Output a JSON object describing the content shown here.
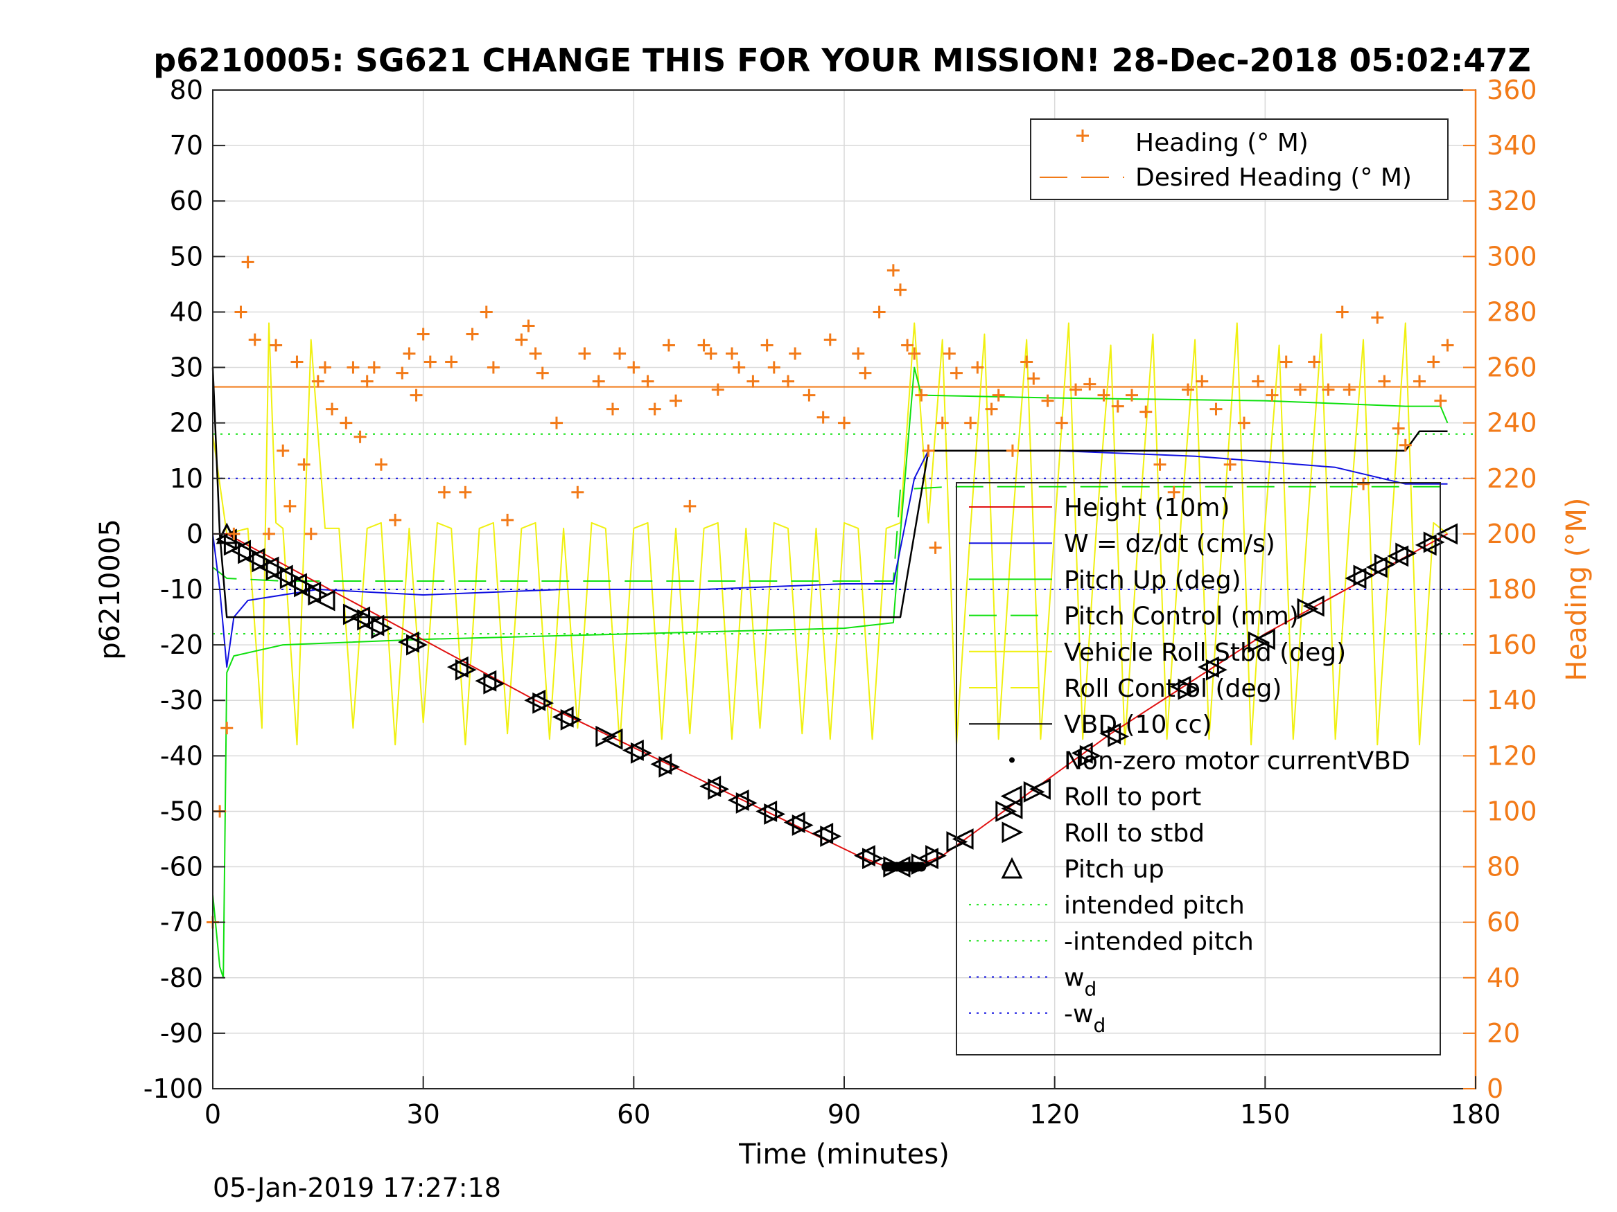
{
  "title": "p6210005: SG621 CHANGE THIS FOR YOUR MISSION! 28-Dec-2018 05:02:47Z",
  "footer_timestamp": "05-Jan-2019 17:27:18",
  "colors": {
    "heading": "#f27a18",
    "height": "#e01010",
    "w": "#1010e0",
    "pitch": "#10e010",
    "roll": "#f0f010",
    "vbd": "#000000",
    "grid": "#d9d9d9"
  },
  "chart_data": {
    "type": "line",
    "xlabel": "Time (minutes)",
    "ylabel_left": "p6210005",
    "ylabel_right": "Heading (°M)",
    "xlim": [
      0,
      180
    ],
    "ylim_left": [
      -100,
      80
    ],
    "ylim_right": [
      0,
      360
    ],
    "x_ticks": [
      0,
      30,
      60,
      90,
      120,
      150,
      180
    ],
    "y_ticks_left": [
      80,
      70,
      60,
      50,
      40,
      30,
      20,
      10,
      0,
      -10,
      -20,
      -30,
      -40,
      -50,
      -60,
      -70,
      -80,
      -90,
      -100
    ],
    "y_ticks_right": [
      360,
      340,
      320,
      300,
      280,
      260,
      240,
      220,
      200,
      180,
      160,
      140,
      120,
      100,
      80,
      60,
      40,
      20,
      0
    ],
    "grid": true,
    "legend_heading": {
      "placement": "top-right",
      "entries": [
        "Heading (° M)",
        "Desired Heading (° M)"
      ]
    },
    "legend_main": {
      "placement": "right",
      "entries": [
        {
          "label": "Height (10m)",
          "style": "solid",
          "color": "#e01010"
        },
        {
          "label": "W = dz/dt (cm/s)",
          "style": "solid",
          "color": "#1010e0"
        },
        {
          "label": "Pitch Up (deg)",
          "style": "solid",
          "color": "#10e010"
        },
        {
          "label": "Pitch Control (mm)",
          "style": "dashed",
          "color": "#10e010"
        },
        {
          "label": "Vehicle Roll Stbd (deg)",
          "style": "solid",
          "color": "#f0f010"
        },
        {
          "label": "Roll Control (deg)",
          "style": "dashed",
          "color": "#f0f010"
        },
        {
          "label": "VBD (10 cc)",
          "style": "solid",
          "color": "#000000"
        },
        {
          "label": "Non-zero motor currentVBD",
          "style": "dot",
          "color": "#000000"
        },
        {
          "label": "Roll to port",
          "style": "marker-left",
          "color": "#000000"
        },
        {
          "label": "Roll to stbd",
          "style": "marker-right",
          "color": "#000000"
        },
        {
          "label": "Pitch up",
          "style": "marker-up",
          "color": "#000000"
        },
        {
          "label": "intended pitch",
          "style": "dotted",
          "color": "#10e010"
        },
        {
          "label": "-intended pitch",
          "style": "dotted",
          "color": "#10e010"
        },
        {
          "label": "w",
          "sub": "d",
          "style": "dotted",
          "color": "#1010e0"
        },
        {
          "label": "-w",
          "sub": "d",
          "style": "dotted",
          "color": "#1010e0"
        }
      ]
    },
    "series": [
      {
        "name": "Height (10m)",
        "axis": "left",
        "x": [
          0,
          2,
          46,
          92,
          96,
          100,
          104,
          128,
          150,
          176
        ],
        "y": [
          0,
          0,
          -30,
          -58,
          -60,
          -60,
          -58,
          -36,
          -18,
          0
        ]
      },
      {
        "name": "W = dz/dt (cm/s)",
        "axis": "left",
        "x": [
          0,
          1,
          2,
          3,
          5,
          15,
          30,
          50,
          70,
          90,
          97,
          100,
          102,
          120,
          140,
          160,
          170,
          176
        ],
        "y": [
          0,
          -10,
          -24,
          -15,
          -12,
          -10,
          -11,
          -10,
          -10,
          -9,
          -9,
          10,
          15,
          15,
          14,
          12,
          9,
          9
        ]
      },
      {
        "name": "Pitch Up (deg)",
        "axis": "left",
        "x": [
          0,
          1,
          1.5,
          2,
          3,
          10,
          30,
          60,
          90,
          97,
          98,
          100,
          101,
          120,
          150,
          170,
          175,
          176
        ],
        "y": [
          -65,
          -78,
          -80,
          -25,
          -22,
          -20,
          -19,
          -18,
          -17,
          -16,
          0,
          30,
          25,
          24.5,
          24,
          23,
          23,
          20
        ]
      },
      {
        "name": "Pitch Control (mm)",
        "axis": "left",
        "x": [
          0,
          2,
          10,
          97,
          98,
          105,
          176
        ],
        "y": [
          -6,
          -8,
          -8.5,
          -8.5,
          8,
          8.5,
          8.5
        ]
      },
      {
        "name": "VBD (10 cc)",
        "axis": "left",
        "x": [
          0,
          1,
          2,
          97,
          98,
          102,
          110,
          170,
          172,
          176
        ],
        "y": [
          30,
          0,
          -15,
          -15,
          -15,
          15,
          15,
          15,
          18.5,
          18.5
        ]
      },
      {
        "name": "intended pitch",
        "axis": "left",
        "x": [
          0,
          180
        ],
        "y": [
          18,
          18
        ]
      },
      {
        "name": "-intended pitch",
        "axis": "left",
        "x": [
          0,
          180
        ],
        "y": [
          -18,
          -18
        ]
      },
      {
        "name": "wd",
        "axis": "left",
        "x": [
          0,
          180
        ],
        "y": [
          10,
          10
        ]
      },
      {
        "name": "-wd",
        "axis": "left",
        "x": [
          0,
          180
        ],
        "y": [
          -10,
          -10
        ]
      },
      {
        "name": "Desired Heading (° M)",
        "axis": "right",
        "x": [
          0,
          180
        ],
        "y": [
          253,
          253
        ]
      },
      {
        "name": "Vehicle Roll Stbd (deg)",
        "axis": "left",
        "x": [
          0,
          2,
          5,
          7,
          8,
          9,
          10,
          12,
          14,
          16,
          18,
          20,
          22,
          24,
          26,
          28,
          30,
          32,
          34,
          36,
          38,
          40,
          42,
          44,
          46,
          48,
          50,
          52,
          54,
          56,
          58,
          60,
          62,
          64,
          66,
          68,
          70,
          72,
          74,
          76,
          78,
          80,
          82,
          84,
          86,
          88,
          90,
          92,
          94,
          96,
          98,
          100,
          102,
          104,
          106,
          108,
          110,
          112,
          114,
          116,
          118,
          120,
          122,
          124,
          126,
          128,
          130,
          132,
          134,
          136,
          138,
          140,
          142,
          144,
          146,
          148,
          150,
          152,
          154,
          156,
          158,
          160,
          162,
          164,
          166,
          168,
          170,
          172,
          174,
          176
        ],
        "y": [
          18,
          0,
          1,
          -35,
          38,
          2,
          1,
          -38,
          35,
          1,
          1,
          -35,
          1,
          2,
          -38,
          1,
          -34,
          2,
          1,
          -38,
          1,
          2,
          -36,
          1,
          2,
          -37,
          1,
          -35,
          2,
          1,
          -38,
          1,
          2,
          -37,
          1,
          -36,
          1,
          2,
          -37,
          1,
          -35,
          2,
          1,
          -36,
          1,
          -37,
          2,
          1,
          -37,
          1,
          2,
          38,
          2,
          35,
          -38,
          1,
          36,
          -37,
          2,
          35,
          -37,
          1,
          38,
          -37,
          2,
          34,
          -38,
          1,
          36,
          -37,
          2,
          35,
          -37,
          1,
          38,
          -38,
          2,
          34,
          -37,
          1,
          36,
          -37,
          2,
          35,
          -38,
          1,
          38,
          -38,
          2,
          0
        ]
      },
      {
        "name": "Heading (° M)",
        "axis": "right",
        "x": [
          0,
          1,
          2,
          3,
          4,
          5,
          6,
          8,
          9,
          10,
          11,
          12,
          13,
          14,
          15,
          16,
          17,
          19,
          20,
          21,
          22,
          23,
          24,
          26,
          27,
          28,
          29,
          30,
          31,
          33,
          34,
          36,
          37,
          39,
          40,
          42,
          44,
          45,
          46,
          47,
          49,
          52,
          53,
          55,
          57,
          58,
          60,
          62,
          63,
          65,
          66,
          68,
          70,
          71,
          72,
          74,
          75,
          77,
          79,
          80,
          82,
          83,
          85,
          87,
          88,
          90,
          92,
          93,
          95,
          97,
          98,
          99,
          100,
          101,
          102,
          103,
          104,
          105,
          106,
          108,
          109,
          111,
          112,
          114,
          116,
          117,
          119,
          121,
          123,
          125,
          127,
          129,
          131,
          133,
          135,
          137,
          139,
          141,
          143,
          145,
          147,
          149,
          151,
          153,
          155,
          157,
          159,
          161,
          162,
          164,
          166,
          167,
          169,
          170,
          172,
          174,
          175,
          176
        ],
        "y": [
          60,
          100,
          130,
          200,
          280,
          298,
          270,
          200,
          268,
          230,
          210,
          262,
          225,
          200,
          255,
          260,
          245,
          240,
          260,
          235,
          255,
          260,
          225,
          205,
          258,
          265,
          250,
          272,
          262,
          215,
          262,
          215,
          272,
          280,
          260,
          205,
          270,
          275,
          265,
          258,
          240,
          215,
          265,
          255,
          245,
          265,
          260,
          255,
          245,
          268,
          248,
          210,
          268,
          265,
          252,
          265,
          260,
          255,
          268,
          260,
          255,
          265,
          250,
          242,
          270,
          240,
          265,
          258,
          280,
          295,
          288,
          268,
          265,
          250,
          230,
          195,
          240,
          265,
          258,
          240,
          260,
          245,
          250,
          230,
          262,
          256,
          248,
          240,
          252,
          254,
          250,
          246,
          250,
          244,
          225,
          215,
          252,
          255,
          245,
          225,
          240,
          255,
          250,
          262,
          252,
          262,
          252,
          280,
          252,
          218,
          278,
          255,
          238,
          232,
          255,
          262,
          248,
          268
        ]
      }
    ],
    "markers": {
      "roll_to_port": {
        "x": [
          2,
          4,
          6,
          8,
          10,
          12,
          14,
          16,
          21,
          23,
          28,
          35,
          39,
          46,
          50,
          57,
          60,
          64,
          71,
          75,
          79,
          83,
          87,
          93,
          98,
          102,
          107,
          114,
          118,
          124,
          128,
          138,
          142,
          150,
          157,
          163,
          166,
          169,
          173,
          176
        ],
        "y": [
          -1,
          -3,
          -4.5,
          -6,
          -7.5,
          -9,
          -10.5,
          -12,
          -15,
          -16.5,
          -19.5,
          -24,
          -26.5,
          -30,
          -33,
          -37,
          -39,
          -41.5,
          -45.5,
          -48,
          -50,
          -52,
          -54,
          -58,
          -60,
          -58.5,
          -55,
          -49.5,
          -46,
          -39.5,
          -36,
          -27.5,
          -24,
          -19,
          -13,
          -8,
          -6,
          -4,
          -2,
          0
        ]
      },
      "roll_to_stbd": {
        "x": [
          3,
          5,
          7,
          9,
          11,
          13,
          15,
          20,
          22,
          24,
          29,
          36,
          40,
          47,
          51,
          56,
          61,
          65,
          72,
          76,
          80,
          84,
          88,
          94,
          97,
          101,
          103,
          106,
          113,
          117,
          125,
          129,
          139,
          143,
          149,
          156,
          164,
          167,
          170,
          174
        ],
        "y": [
          -2,
          -3.5,
          -5,
          -6.5,
          -8,
          -9.5,
          -11,
          -14.5,
          -15.5,
          -17,
          -20,
          -24.5,
          -27,
          -30.5,
          -33.5,
          -36.5,
          -39.5,
          -42,
          -46,
          -48.5,
          -50.5,
          -52.5,
          -54.5,
          -58.5,
          -60,
          -59.5,
          -58,
          -55.5,
          -50,
          -46.5,
          -40,
          -36.5,
          -28,
          -24.5,
          -19.5,
          -13.5,
          -7.5,
          -5.5,
          -3.5,
          -1.5
        ]
      },
      "pitch_up": {
        "x": [
          2
        ],
        "y": [
          0
        ]
      },
      "nonzero_motor_current_vbd": {
        "x": [
          96,
          96.5,
          97,
          97.5,
          98,
          98.5,
          99,
          99.5,
          100,
          100.5,
          101
        ],
        "y": [
          -60,
          -60,
          -60,
          -60,
          -60,
          -60,
          -60,
          -60,
          -60,
          -60,
          -60
        ]
      }
    }
  }
}
